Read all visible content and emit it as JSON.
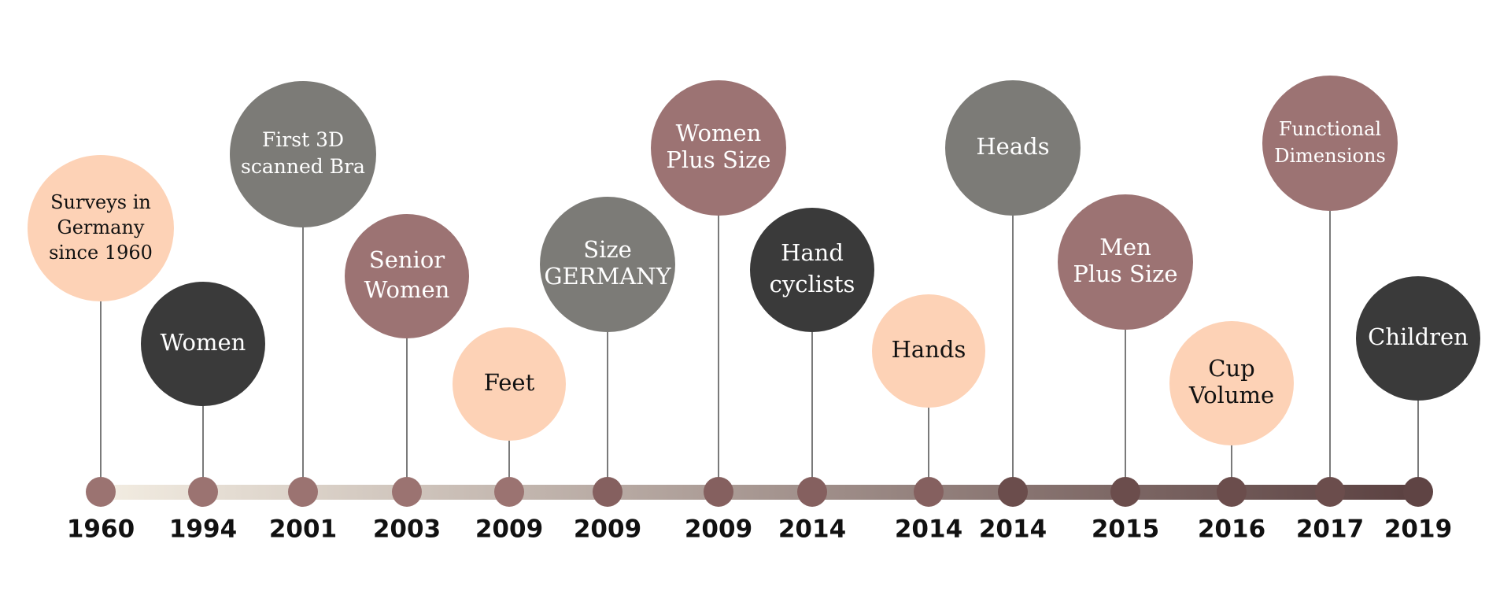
{
  "timeline": {
    "gradient_start": "#f3ede2",
    "gradient_end": "#5a4040",
    "stem_color": "#7a7a7a",
    "events": [
      {
        "year": "1960",
        "lines": [
          "Surveys in",
          "Germany",
          "since 1960"
        ],
        "fill": "#fdd2b6",
        "text_color": "#111111"
      },
      {
        "year": "1994",
        "lines": [
          "Women"
        ],
        "fill": "#3a3a3a",
        "text_color": "#ffffff"
      },
      {
        "year": "2001",
        "lines": [
          "First 3D",
          "scanned Bra"
        ],
        "fill": "#7c7b77",
        "text_color": "#ffffff"
      },
      {
        "year": "2003",
        "lines": [
          "Senior",
          "Women"
        ],
        "fill": "#9c7373",
        "text_color": "#ffffff"
      },
      {
        "year": "2009",
        "lines": [
          "Feet"
        ],
        "fill": "#fdd2b6",
        "text_color": "#111111"
      },
      {
        "year": "2009",
        "lines": [
          "Size",
          "GERMANY"
        ],
        "fill": "#7c7b77",
        "text_color": "#ffffff"
      },
      {
        "year": "2009",
        "lines": [
          "Women",
          "Plus Size"
        ],
        "fill": "#9c7373",
        "text_color": "#ffffff"
      },
      {
        "year": "2014",
        "lines": [
          "Hand",
          "cyclists"
        ],
        "fill": "#3a3a3a",
        "text_color": "#ffffff"
      },
      {
        "year": "2014",
        "lines": [
          "Hands"
        ],
        "fill": "#fdd2b6",
        "text_color": "#111111"
      },
      {
        "year": "2014",
        "lines": [
          "Heads"
        ],
        "fill": "#7c7b77",
        "text_color": "#ffffff"
      },
      {
        "year": "2015",
        "lines": [
          "Men",
          "Plus Size"
        ],
        "fill": "#9c7373",
        "text_color": "#ffffff"
      },
      {
        "year": "2016",
        "lines": [
          "Cup",
          "Volume"
        ],
        "fill": "#fdd2b6",
        "text_color": "#111111"
      },
      {
        "year": "2017",
        "lines": [
          "Functional",
          "Dimensions"
        ],
        "fill": "#9c7373",
        "text_color": "#ffffff"
      },
      {
        "year": "2019",
        "lines": [
          "Children"
        ],
        "fill": "#3a3a3a",
        "text_color": "#ffffff"
      }
    ]
  }
}
